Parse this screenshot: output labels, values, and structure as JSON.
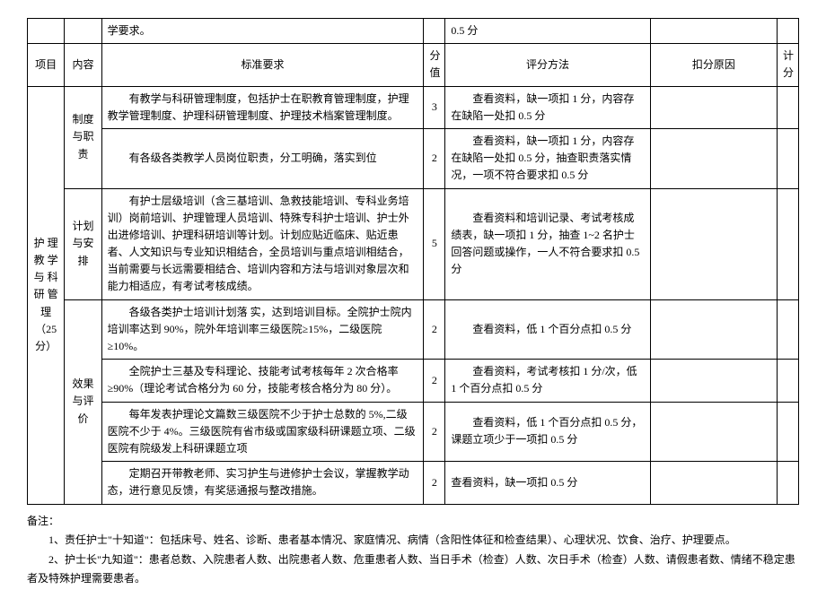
{
  "toprow": {
    "req": "学要求。",
    "method": "0.5 分"
  },
  "header": {
    "project": "项目",
    "content": "内容",
    "requirement": "标准要求",
    "score": "分值",
    "method": "评分方法",
    "reason": "扣分原因",
    "points": "计分"
  },
  "project_label": "护 理 教 学 与 科 研 管 理（25 分）",
  "sections": [
    {
      "content_label": "制度与职责",
      "rows": [
        {
          "req": "有教学与科研管理制度，包括护士在职教育管理制度，护理教学管理制度、护理科研管理制度、护理技术档案管理制度。",
          "score": "3",
          "method": "查看资料，缺一项扣 1 分，内容存在缺陷一处扣 0.5 分"
        },
        {
          "req": "有各级各类教学人员岗位职责，分工明确，落实到位",
          "score": "2",
          "method": "查看资料，缺一项扣 1 分，内容存在缺陷一处扣 0.5 分，抽查职责落实情况，一项不符合要求扣 0.5 分"
        }
      ]
    },
    {
      "content_label": "计划与安排",
      "rows": [
        {
          "req": "有护士层级培训（含三基培训、急救技能培训、专科业务培训）岗前培训、护理管理人员培训、特殊专科护士培训、护士外出进修培训、护理科研培训等计划。计划应贴近临床、贴近患者、人文知识与专业知识相结合，全员培训与重点培训相结合，当前需要与长远需要相结合、培训内容和方法与培训对象层次和能力相适应，有考试考核成绩。",
          "score": "5",
          "method": "查看资料和培训记录、考试考核成绩表，缺一项扣 1 分，抽查 1~2 名护士回答问题或操作，一人不符合要求扣 0.5 分"
        }
      ]
    },
    {
      "content_label": "效果与评价",
      "rows": [
        {
          "req": "各级各类护士培训计划落 实，达到培训目标。全院护士院内培训率达到 90%，院外年培训率三级医院≥15%，二级医院≥10%。",
          "score": "2",
          "method": "查看资料，低 1 个百分点扣 0.5 分"
        },
        {
          "req": "全院护士三基及专科理论、技能考试考核每年 2 次合格率≥90%（理论考试合格分为 60 分，技能考核合格分为 80 分）。",
          "score": "2",
          "method": "查看资料，考试考核扣 1 分/次，低 1 个百分点扣 0.5 分",
          "method_class": "indent"
        },
        {
          "req": "每年发表护理论文篇数三级医院不少于护士总数的 5%,二级医院不少于 4%。三级医院有省市级或国家级科研课题立项、二级医院有院级发上科研课题立项",
          "score": "2",
          "method": "查看资料，低 1 个百分点扣 0.5 分，课题立项少于一项扣 0.5 分"
        },
        {
          "req": "定期召开带教老师、实习护生与进修护士会议，掌握教学动态，进行意见反馈，有奖惩通报与整改措施。",
          "score": "2",
          "method": "查看资料，缺一项扣 0.5 分",
          "method_class": ""
        }
      ]
    }
  ],
  "notes": {
    "title": "备注：",
    "line1": "1、责任护士\"十知道\"：包括床号、姓名、诊断、患者基本情况、家庭情况、病情（含阳性体征和检查结果）、心理状况、饮食、治疗、护理要点。",
    "line2": "2、护士长\"九知道\"：患者总数、入院患者人数、出院患者人数、危重患者人数、当日手术（检查）人数、次日手术（检查）人数、请假患者数、情绪不稳定患者及特殊护理需要患者。"
  }
}
